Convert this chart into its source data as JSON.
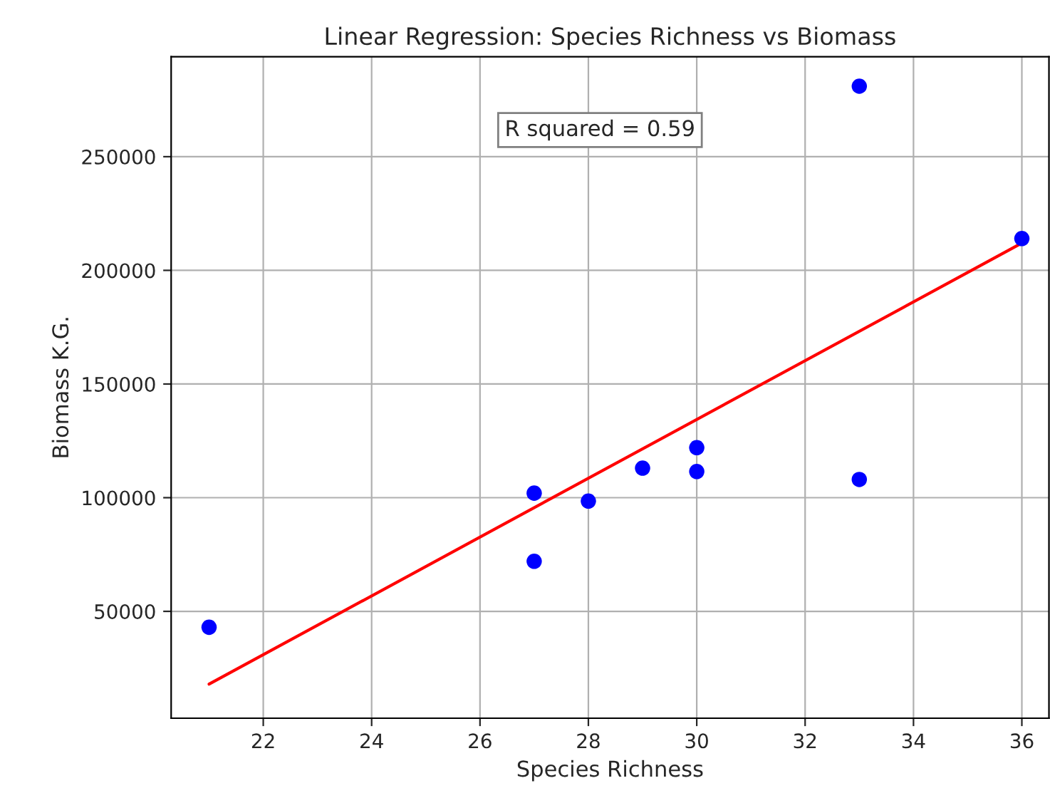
{
  "chart_data": {
    "type": "scatter",
    "title": "Linear Regression: Species Richness vs Biomass",
    "xlabel": "Species Richness",
    "ylabel": "Biomass K.G.",
    "x": [
      21,
      27,
      27,
      28,
      29,
      30,
      30,
      33,
      33,
      36
    ],
    "series": [
      {
        "marker": "circle",
        "color": "#0000ff",
        "values": [
          43000,
          102000,
          72000,
          98500,
          113000,
          122000,
          111500,
          108000,
          281000,
          214000
        ]
      },
      {
        "type": "line",
        "color": "#ff0000",
        "x": [
          21,
          36
        ],
        "values": [
          18000,
          212000
        ]
      }
    ],
    "annotations": [
      "R squared = 0.59"
    ],
    "xlim": [
      20.3,
      36.5
    ],
    "ylim": [
      3000,
      294000
    ],
    "xticks": [
      22,
      24,
      26,
      28,
      30,
      32,
      34,
      36
    ],
    "yticks": [
      50000,
      100000,
      150000,
      200000,
      250000
    ],
    "grid": true
  }
}
